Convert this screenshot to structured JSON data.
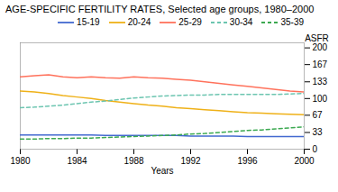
{
  "chart_data": {
    "type": "line",
    "title": "AGE-SPECIFIC FERTILITY RATES, Selected age groups, 1980–2000",
    "xlabel": "Years",
    "ylabel": "ASFR",
    "x": [
      1980,
      1981,
      1982,
      1983,
      1984,
      1985,
      1986,
      1987,
      1988,
      1989,
      1990,
      1991,
      1992,
      1993,
      1994,
      1995,
      1996,
      1997,
      1998,
      1999,
      2000
    ],
    "series": [
      {
        "name": "15-19",
        "line_style": "solid",
        "values": [
          28,
          28,
          28,
          28,
          28,
          28,
          27,
          27,
          27,
          27,
          27,
          27,
          26,
          26,
          26,
          26,
          25,
          25,
          25,
          25,
          25
        ]
      },
      {
        "name": "20-24",
        "line_style": "solid",
        "values": [
          115,
          113,
          110,
          106,
          103,
          100,
          96,
          93,
          90,
          87,
          85,
          82,
          80,
          78,
          76,
          74,
          72,
          71,
          70,
          69,
          68
        ]
      },
      {
        "name": "25-29",
        "line_style": "solid",
        "values": [
          143,
          145,
          147,
          143,
          141,
          143,
          141,
          140,
          143,
          141,
          140,
          138,
          136,
          133,
          130,
          127,
          124,
          121,
          118,
          115,
          113
        ]
      },
      {
        "name": "30-34",
        "line_style": "dashed",
        "values": [
          82,
          83,
          85,
          87,
          90,
          93,
          95,
          98,
          101,
          103,
          105,
          106,
          107,
          107,
          108,
          108,
          108,
          108,
          108,
          109,
          110
        ]
      },
      {
        "name": "35-39",
        "line_style": "dashed",
        "values": [
          20,
          20,
          21,
          21,
          22,
          22,
          23,
          24,
          25,
          26,
          27,
          28,
          30,
          31,
          33,
          35,
          37,
          38,
          40,
          42,
          44
        ]
      }
    ],
    "xlim": [
      1980,
      2000
    ],
    "xticks": [
      1980,
      1984,
      1988,
      1992,
      1996,
      2000
    ],
    "ylim": [
      0,
      210
    ],
    "yticks": [
      0,
      33,
      67,
      100,
      133,
      167,
      200
    ],
    "legend": "upper right",
    "grid": false
  }
}
